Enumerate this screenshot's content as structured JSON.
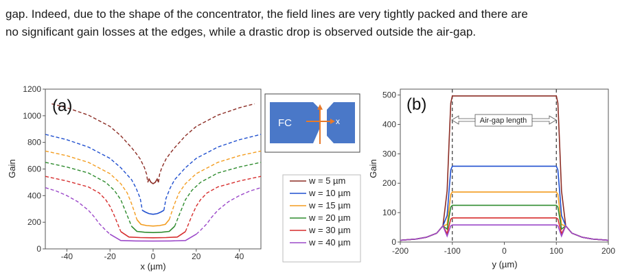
{
  "paragraph": {
    "line1": "gap. Indeed, due to the shape of the concentrator, the field lines are very tightly packed and there are",
    "line2": "no significant gain losses at the edges, while a drastic drop is observed outside the air-gap."
  },
  "colors": {
    "w5": "#8b2c24",
    "w10": "#1f4fcf",
    "w15": "#f39c1e",
    "w20": "#2e8b2e",
    "w30": "#d62c2c",
    "w40": "#9b48c9",
    "inset_fill": "#4a78c8",
    "inset_arrow": "#e87a2a"
  },
  "inset": {
    "label": "FC",
    "axis_y": "y",
    "axis_x": "x"
  },
  "legend": [
    "w = 5 µm",
    "w = 10 µm",
    "w = 15 µm",
    "w = 20 µm",
    "w = 30 µm",
    "w = 40 µm"
  ],
  "chart_data": [
    {
      "type": "line",
      "panel_label": "(a)",
      "xlabel": "x (µm)",
      "ylabel": "Gain",
      "xlim": [
        -50,
        50
      ],
      "ylim": [
        0,
        1200
      ],
      "xticks": [
        -40,
        -20,
        0,
        20,
        40
      ],
      "yticks": [
        0,
        200,
        400,
        600,
        800,
        1000,
        1200
      ],
      "series": [
        {
          "name": "w = 5 µm",
          "color_key": "w5",
          "inner_halfwidth": 2.5,
          "x": [
            -47,
            -40,
            -30,
            -20,
            -15,
            -10,
            -8,
            -6,
            -4,
            -3,
            -2.5
          ],
          "y": [
            1090,
            1060,
            1005,
            920,
            850,
            760,
            720,
            675,
            610,
            560,
            500
          ],
          "flat": 500
        },
        {
          "name": "w = 10 µm",
          "color_key": "w10",
          "inner_halfwidth": 5,
          "x": [
            -50,
            -40,
            -30,
            -20,
            -15,
            -10,
            -8,
            -6,
            -5
          ],
          "y": [
            860,
            820,
            765,
            680,
            610,
            520,
            460,
            380,
            290
          ],
          "flat": 265
        },
        {
          "name": "w = 15 µm",
          "color_key": "w15",
          "inner_halfwidth": 7.5,
          "x": [
            -50,
            -40,
            -30,
            -20,
            -15,
            -12,
            -10,
            -8.5,
            -7.5
          ],
          "y": [
            735,
            700,
            650,
            565,
            490,
            420,
            340,
            270,
            220
          ],
          "flat": 175
        },
        {
          "name": "w = 20 µm",
          "color_key": "w20",
          "inner_halfwidth": 10,
          "x": [
            -50,
            -40,
            -30,
            -22,
            -18,
            -15,
            -13,
            -11,
            -10
          ],
          "y": [
            650,
            615,
            570,
            500,
            440,
            370,
            290,
            210,
            170
          ],
          "flat": 125
        },
        {
          "name": "w = 30 µm",
          "color_key": "w30",
          "inner_halfwidth": 15,
          "x": [
            -50,
            -40,
            -30,
            -25,
            -22,
            -20,
            -18,
            -16,
            -15
          ],
          "y": [
            545,
            510,
            465,
            420,
            370,
            320,
            250,
            170,
            130
          ],
          "flat": 85
        },
        {
          "name": "w = 40 µm",
          "color_key": "w40",
          "inner_halfwidth": 20,
          "x": [
            -50,
            -45,
            -40,
            -35,
            -30,
            -27,
            -25,
            -22,
            -20
          ],
          "y": [
            460,
            435,
            400,
            355,
            290,
            235,
            190,
            140,
            110
          ],
          "flat": 60
        }
      ]
    },
    {
      "type": "line",
      "panel_label": "(b)",
      "xlabel": "y (µm)",
      "ylabel": "Gain",
      "xlim": [
        -200,
        200
      ],
      "ylim": [
        0,
        520
      ],
      "xticks": [
        -200,
        -100,
        0,
        100,
        200
      ],
      "yticks": [
        0,
        100,
        200,
        300,
        400,
        500
      ],
      "annotation": "Air-gap length",
      "marker_lines": [
        -100,
        100
      ],
      "series": [
        {
          "name": "w = 5 µm",
          "color_key": "w5",
          "plateau": 497
        },
        {
          "name": "w = 10 µm",
          "color_key": "w10",
          "plateau": 258
        },
        {
          "name": "w = 15 µm",
          "color_key": "w15",
          "plateau": 170
        },
        {
          "name": "w = 20 µm",
          "color_key": "w20",
          "plateau": 125
        },
        {
          "name": "w = 30 µm",
          "color_key": "w30",
          "plateau": 82
        },
        {
          "name": "w = 40 µm",
          "color_key": "w40",
          "plateau": 58
        }
      ]
    }
  ]
}
